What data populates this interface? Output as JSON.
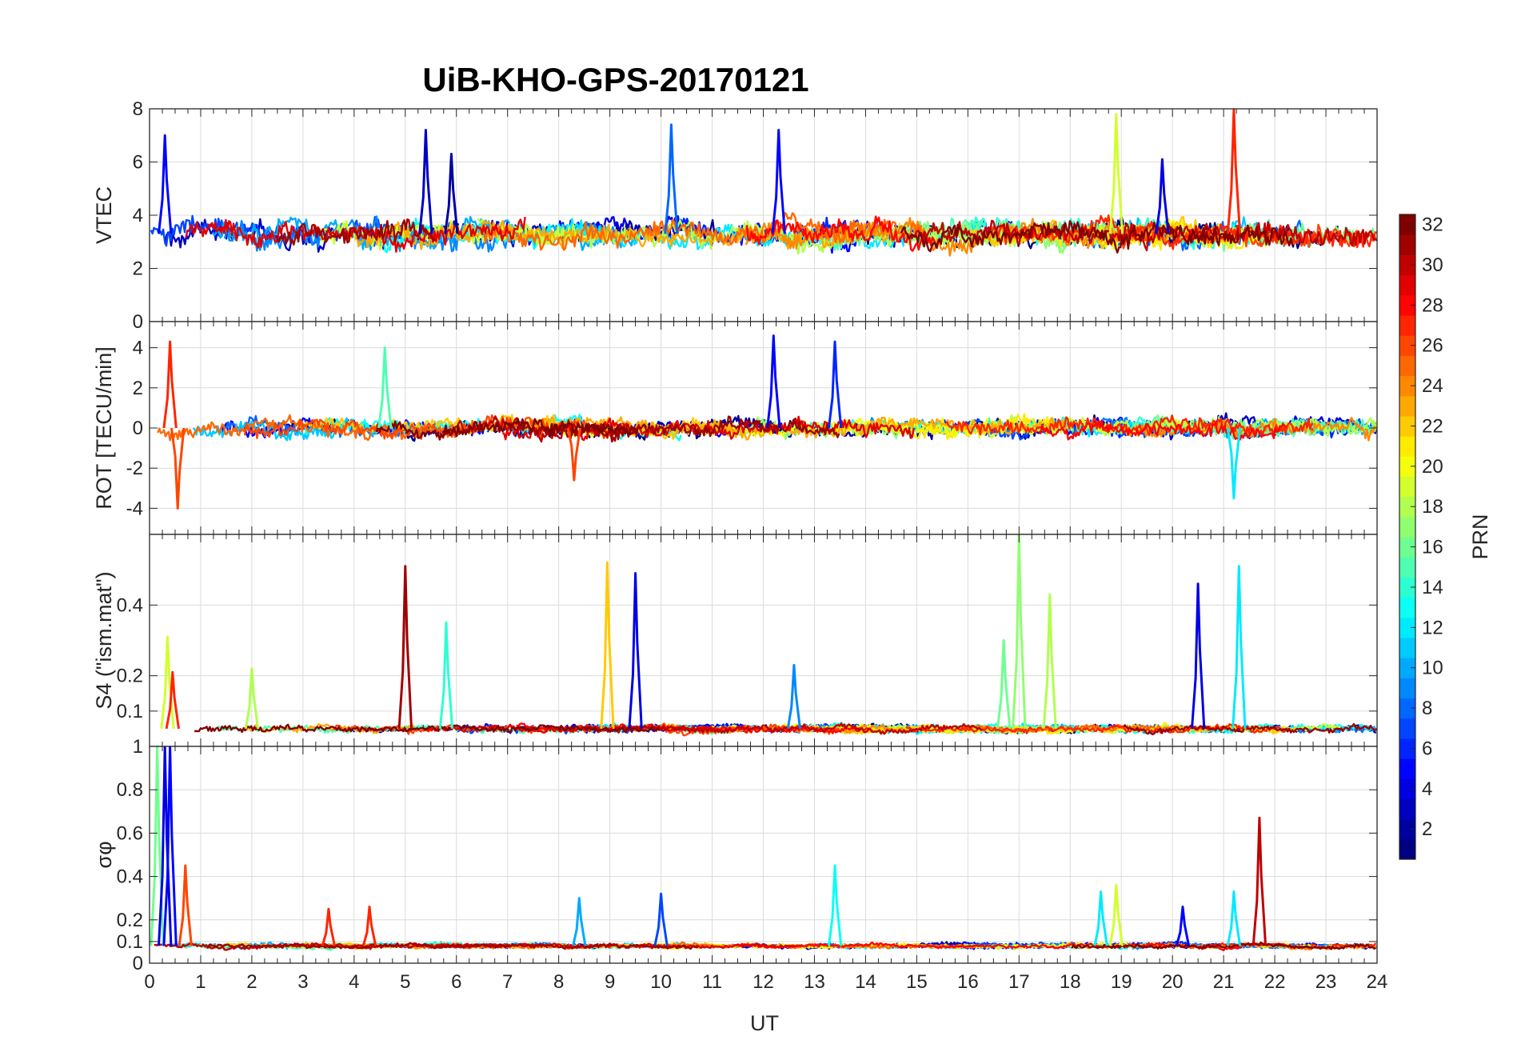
{
  "title": "UiB-KHO-GPS-20170121",
  "chart_data": {
    "type": "line",
    "title": "UiB-KHO-GPS-20170121",
    "xlabel": "UT",
    "xlim": [
      0,
      24
    ],
    "x_ticks": [
      "0",
      "1",
      "2",
      "3",
      "4",
      "5",
      "6",
      "7",
      "8",
      "9",
      "10",
      "11",
      "12",
      "13",
      "14",
      "15",
      "16",
      "17",
      "18",
      "19",
      "20",
      "21",
      "22",
      "23",
      "24"
    ],
    "grid": true,
    "colorbar": {
      "label": "PRN",
      "range": [
        1,
        32
      ],
      "colormap": "jet",
      "ticks": [
        "2",
        "4",
        "6",
        "8",
        "10",
        "12",
        "14",
        "16",
        "18",
        "20",
        "22",
        "24",
        "26",
        "28",
        "30",
        "32"
      ]
    },
    "panels": [
      {
        "id": "vtec",
        "ylabel": "VTEC",
        "ylim": [
          0,
          8
        ],
        "y_ticks": [
          "0",
          "2",
          "4",
          "6",
          "8"
        ],
        "baseline": 3.3,
        "noise": 0.55,
        "seed": 11,
        "spikes": [
          {
            "x": 0.3,
            "y": 7.0,
            "prn": 5
          },
          {
            "x": 5.4,
            "y": 7.2,
            "prn": 3
          },
          {
            "x": 5.9,
            "y": 6.3,
            "prn": 2
          },
          {
            "x": 10.2,
            "y": 7.4,
            "prn": 8
          },
          {
            "x": 12.3,
            "y": 7.2,
            "prn": 5
          },
          {
            "x": 18.9,
            "y": 7.8,
            "prn": 19
          },
          {
            "x": 21.2,
            "y": 8.0,
            "prn": 27
          },
          {
            "x": 19.8,
            "y": 6.1,
            "prn": 4
          }
        ]
      },
      {
        "id": "rot",
        "ylabel": "ROT [TECU/min]",
        "ylim": [
          -5.3,
          5.3
        ],
        "y_ticks": [
          "-4",
          "-2",
          "0",
          "2",
          "4"
        ],
        "baseline": 0,
        "noise": 0.5,
        "seed": 23,
        "spikes": [
          {
            "x": 0.4,
            "y": 4.3,
            "prn": 27
          },
          {
            "x": 0.55,
            "y": -4.0,
            "prn": 26
          },
          {
            "x": 4.6,
            "y": 4.0,
            "prn": 15
          },
          {
            "x": 12.2,
            "y": 4.6,
            "prn": 5
          },
          {
            "x": 13.4,
            "y": 4.3,
            "prn": 6
          },
          {
            "x": 21.2,
            "y": -3.5,
            "prn": 12
          },
          {
            "x": 8.3,
            "y": -2.6,
            "prn": 26
          }
        ]
      },
      {
        "id": "s4",
        "ylabel": "S4 (\"ism.mat\")",
        "ylim": [
          0,
          0.6
        ],
        "y_ticks": [
          "0.1",
          "0.2",
          "0.4"
        ],
        "baseline": 0.05,
        "noise": 0.012,
        "seed": 37,
        "spikes": [
          {
            "x": 0.35,
            "y": 0.31,
            "prn": 19
          },
          {
            "x": 0.45,
            "y": 0.21,
            "prn": 27
          },
          {
            "x": 2.0,
            "y": 0.22,
            "prn": 18
          },
          {
            "x": 5.0,
            "y": 0.51,
            "prn": 31
          },
          {
            "x": 5.8,
            "y": 0.35,
            "prn": 14
          },
          {
            "x": 8.95,
            "y": 0.52,
            "prn": 22
          },
          {
            "x": 9.5,
            "y": 0.49,
            "prn": 4
          },
          {
            "x": 12.6,
            "y": 0.23,
            "prn": 9
          },
          {
            "x": 16.7,
            "y": 0.3,
            "prn": 16
          },
          {
            "x": 17.0,
            "y": 0.6,
            "prn": 17
          },
          {
            "x": 17.6,
            "y": 0.43,
            "prn": 18
          },
          {
            "x": 20.5,
            "y": 0.46,
            "prn": 4
          },
          {
            "x": 21.3,
            "y": 0.51,
            "prn": 12
          }
        ]
      },
      {
        "id": "sigma",
        "ylabel": "σφ",
        "ylim": [
          0,
          1
        ],
        "y_ticks": [
          "0",
          "0.1",
          "0.2",
          "0.4",
          "0.6",
          "0.8",
          "1"
        ],
        "baseline": 0.08,
        "noise": 0.012,
        "seed": 53,
        "spikes": [
          {
            "x": 0.15,
            "y": 1.0,
            "prn": 16
          },
          {
            "x": 0.3,
            "y": 1.0,
            "prn": 4
          },
          {
            "x": 0.4,
            "y": 1.0,
            "prn": 5
          },
          {
            "x": 0.7,
            "y": 0.45,
            "prn": 26
          },
          {
            "x": 3.5,
            "y": 0.25,
            "prn": 27
          },
          {
            "x": 4.3,
            "y": 0.26,
            "prn": 27
          },
          {
            "x": 8.4,
            "y": 0.3,
            "prn": 10
          },
          {
            "x": 10.0,
            "y": 0.32,
            "prn": 7
          },
          {
            "x": 13.4,
            "y": 0.45,
            "prn": 13
          },
          {
            "x": 18.6,
            "y": 0.33,
            "prn": 12
          },
          {
            "x": 18.9,
            "y": 0.36,
            "prn": 19
          },
          {
            "x": 20.2,
            "y": 0.26,
            "prn": 5
          },
          {
            "x": 21.2,
            "y": 0.33,
            "prn": 12
          },
          {
            "x": 21.7,
            "y": 0.67,
            "prn": 30
          }
        ]
      }
    ]
  }
}
